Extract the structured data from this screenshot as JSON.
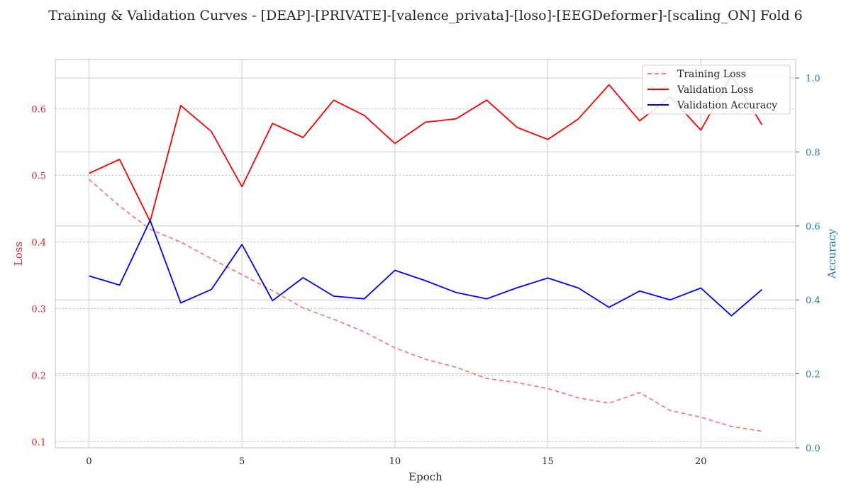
{
  "chart_data": {
    "type": "line",
    "title": "Training & Validation Curves - [DEAP]-[PRIVATE]-[valence_privata]-[loso]-[EEGDeformer]-[scaling_ON] Fold 6",
    "xlabel": "Epoch",
    "ylabel_left": "Loss",
    "ylabel_right": "Accuracy",
    "xlim": [
      -1.1,
      23.1
    ],
    "ylim_left": [
      0.091,
      0.674
    ],
    "ylim_right": [
      0.0,
      1.05
    ],
    "xticks": [
      0,
      5,
      10,
      15,
      20
    ],
    "xtick_labels": [
      "0",
      "5",
      "10",
      "15",
      "20"
    ],
    "yticks_left": [
      0.1,
      0.2,
      0.3,
      0.4,
      0.5,
      0.6
    ],
    "ytick_labels_left": [
      "0.1",
      "0.2",
      "0.3",
      "0.4",
      "0.5",
      "0.6"
    ],
    "yticks_right": [
      0.0,
      0.2,
      0.4,
      0.6,
      0.8,
      1.0
    ],
    "ytick_labels_right": [
      "0.0",
      "0.2",
      "0.4",
      "0.6",
      "0.8",
      "1.0"
    ],
    "grid": true,
    "legend_position": "top-right",
    "x": [
      0,
      1,
      2,
      3,
      4,
      5,
      6,
      7,
      8,
      9,
      10,
      11,
      12,
      13,
      14,
      15,
      16,
      17,
      18,
      19,
      20,
      21,
      22
    ],
    "series": [
      {
        "name": "Training Loss",
        "axis": "left",
        "color": "#f08080",
        "dashed": true,
        "values": [
          0.494,
          0.454,
          0.419,
          0.4,
          0.375,
          0.351,
          0.327,
          0.301,
          0.284,
          0.265,
          0.241,
          0.224,
          0.212,
          0.195,
          0.189,
          0.18,
          0.166,
          0.158,
          0.174,
          0.147,
          0.137,
          0.123,
          0.116
        ]
      },
      {
        "name": "Validation Loss",
        "axis": "left",
        "color": "#ff0000",
        "dashed": false,
        "values": [
          0.503,
          0.524,
          0.431,
          0.605,
          0.566,
          0.483,
          0.578,
          0.557,
          0.613,
          0.59,
          0.548,
          0.58,
          0.585,
          0.613,
          0.572,
          0.554,
          0.585,
          0.636,
          0.582,
          0.618,
          0.568,
          0.65,
          0.576
        ]
      },
      {
        "name": "Validation Accuracy",
        "axis": "right",
        "color": "#0000ff",
        "dashed": false,
        "values": [
          0.465,
          0.44,
          0.615,
          0.392,
          0.428,
          0.55,
          0.398,
          0.46,
          0.41,
          0.403,
          0.48,
          0.452,
          0.42,
          0.403,
          0.433,
          0.459,
          0.432,
          0.38,
          0.424,
          0.4,
          0.432,
          0.357,
          0.428
        ]
      }
    ]
  }
}
